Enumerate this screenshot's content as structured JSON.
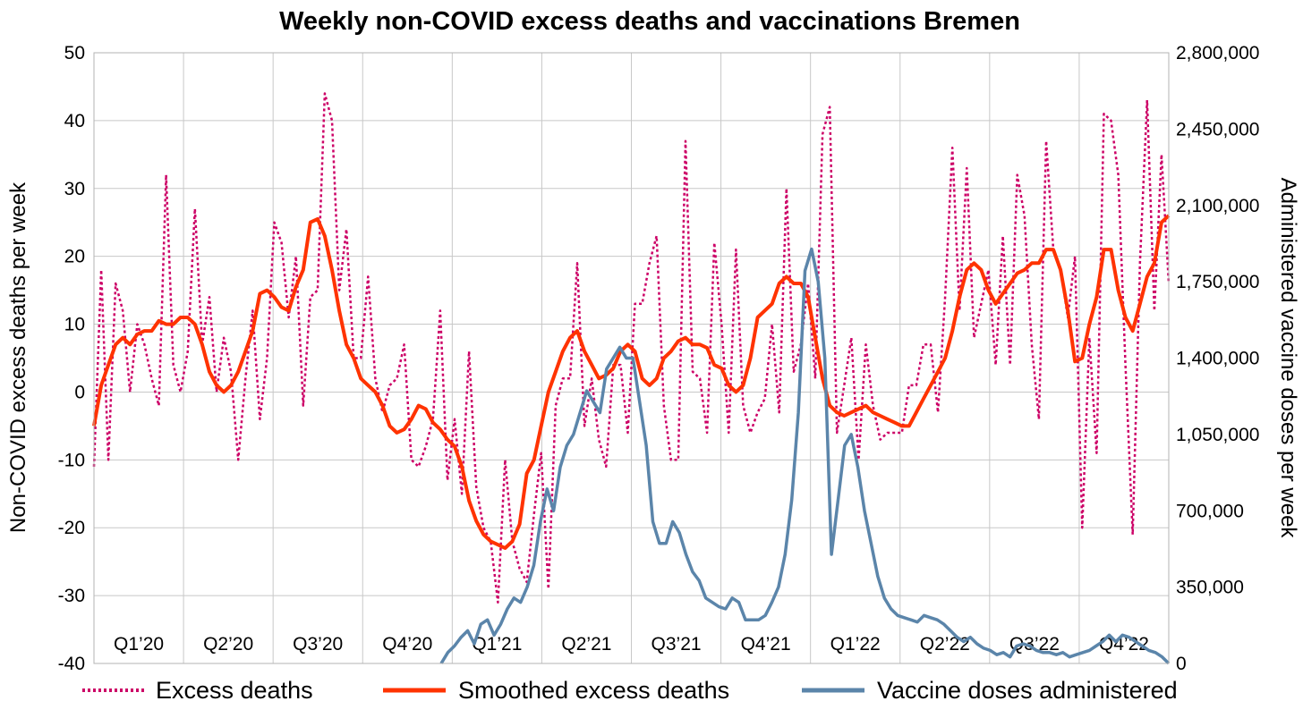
{
  "chart_data": {
    "type": "line",
    "title": "Weekly non-COVID excess deaths and vaccinations Bremen",
    "ylabel": "Non-COVID excess deaths per week",
    "y2label": "Administered vaccine doses per week",
    "ylim": [
      -40,
      50
    ],
    "y2lim": [
      0,
      2800000
    ],
    "yticks": [
      "50",
      "40",
      "30",
      "20",
      "10",
      "0",
      "-10",
      "-20",
      "-30",
      "-40"
    ],
    "y2ticks": [
      "2,800,000",
      "2,450,000",
      "2,100,000",
      "1,750,000",
      "1,400,000",
      "1,050,000",
      "700,000",
      "350,000",
      "0"
    ],
    "quarters": [
      "Q1’20",
      "Q2’20",
      "Q3’20",
      "Q4’20",
      "Q1’21",
      "Q2’21",
      "Q3’21",
      "Q4’21",
      "Q1’22",
      "Q2’22",
      "Q3’22",
      "Q4’22"
    ],
    "grid": true,
    "legend_position": "bottom",
    "colors": {
      "excess": "#cc0066",
      "smoothed": "#ff3300",
      "vaccine": "#5b85aa"
    },
    "series": [
      {
        "name": "Excess deaths",
        "axis": "left",
        "style": "dotted",
        "values": [
          -11,
          18,
          -10,
          16,
          12,
          0,
          10,
          7,
          2,
          -2,
          32,
          4,
          0,
          6,
          27,
          7,
          14,
          0,
          8,
          3,
          -10,
          2,
          12,
          -4,
          5,
          25,
          22,
          11,
          20,
          -2,
          14,
          15,
          44,
          40,
          15,
          24,
          5,
          5,
          17,
          2,
          -3,
          1,
          2,
          7,
          -10,
          -11,
          -8,
          -4,
          12,
          -13,
          -4,
          -15,
          6,
          -14,
          -20,
          -22,
          -31,
          -10,
          -22,
          -26,
          -28,
          -18,
          -9,
          -29,
          -2,
          2,
          2,
          19,
          -5,
          2,
          -7,
          -11,
          4,
          4,
          -6,
          13,
          13,
          19,
          23,
          -2,
          -10,
          -10,
          37,
          3,
          2,
          -6,
          22,
          10,
          -6,
          21,
          -2,
          -6,
          -3,
          -1,
          10,
          -3,
          30,
          3,
          7,
          16,
          2,
          38,
          42,
          -6,
          1,
          8,
          -10,
          7,
          -2,
          -7,
          -6,
          -6,
          -6,
          1,
          1,
          7,
          7,
          -3,
          14,
          36,
          12,
          33,
          8,
          13,
          18,
          4,
          23,
          4,
          32,
          26,
          7,
          -4,
          37,
          21,
          18,
          11,
          20,
          -20,
          8,
          -9,
          41,
          40,
          32,
          4,
          -21,
          19,
          43,
          12,
          35,
          16
        ],
        "_note": "unused"
      },
      {
        "name": "Smoothed excess deaths",
        "axis": "left",
        "style": "solid",
        "values": [
          -5,
          1,
          4,
          7,
          8,
          7,
          8.5,
          9,
          9,
          10.5,
          10,
          10,
          11,
          11,
          10,
          7,
          3,
          1,
          0,
          1,
          3,
          6,
          9,
          14.5,
          15,
          14,
          12.5,
          12,
          15.5,
          18,
          25,
          25.5,
          23,
          18,
          12,
          7,
          5,
          2,
          1,
          0,
          -2,
          -5,
          -6,
          -5.5,
          -4,
          -2,
          -2.5,
          -4.5,
          -5.5,
          -7,
          -8,
          -11,
          -16,
          -19,
          -21,
          -22,
          -22.5,
          -23,
          -22,
          -19.5,
          -12,
          -10,
          -5,
          0,
          3,
          6,
          8,
          9,
          6,
          4,
          2,
          2.5,
          3.5,
          6,
          7,
          6,
          2,
          1,
          2,
          5,
          6,
          7.5,
          8,
          7,
          7,
          6.5,
          4,
          3.5,
          1,
          0,
          1,
          5,
          11,
          12,
          13,
          16,
          17,
          16,
          16,
          14,
          8,
          2,
          -2,
          -3,
          -3.5,
          -3,
          -2.5,
          -2,
          -3,
          -3.5,
          -4,
          -4.5,
          -5,
          -5,
          -3,
          -1,
          1,
          3,
          5,
          9,
          14,
          18,
          19,
          18,
          15,
          13,
          14.5,
          16,
          17.5,
          18,
          19,
          19,
          21,
          21,
          18,
          12,
          4.5,
          5,
          10,
          14,
          21,
          21,
          15,
          11,
          9,
          13,
          17,
          19,
          25,
          26
        ],
        "_note": "unused"
      },
      {
        "name": "Vaccine doses administered",
        "axis": "right",
        "style": "solid",
        "values": [
          0,
          50000,
          80000,
          120000,
          150000,
          90000,
          180000,
          200000,
          130000,
          180000,
          250000,
          300000,
          280000,
          350000,
          450000,
          650000,
          800000,
          700000,
          900000,
          1000000,
          1050000,
          1150000,
          1250000,
          1200000,
          1150000,
          1350000,
          1400000,
          1450000,
          1400000,
          1400000,
          1200000,
          1000000,
          650000,
          550000,
          550000,
          650000,
          600000,
          500000,
          420000,
          380000,
          300000,
          280000,
          260000,
          250000,
          300000,
          280000,
          200000,
          200000,
          200000,
          220000,
          280000,
          350000,
          500000,
          750000,
          1150000,
          1800000,
          1900000,
          1750000,
          1400000,
          500000,
          750000,
          1000000,
          1050000,
          900000,
          700000,
          550000,
          400000,
          300000,
          250000,
          220000,
          210000,
          200000,
          190000,
          220000,
          210000,
          200000,
          180000,
          150000,
          120000,
          100000,
          120000,
          90000,
          70000,
          60000,
          40000,
          50000,
          30000,
          80000,
          90000,
          80000,
          60000,
          50000,
          50000,
          40000,
          50000,
          30000,
          40000,
          50000,
          60000,
          80000,
          100000,
          130000,
          100000,
          130000,
          120000,
          100000,
          80000,
          60000,
          50000,
          30000,
          0
        ]
      }
    ]
  },
  "legend": [
    {
      "label": "Excess deaths"
    },
    {
      "label": "Smoothed excess deaths"
    },
    {
      "label": "Vaccine doses administered"
    }
  ]
}
